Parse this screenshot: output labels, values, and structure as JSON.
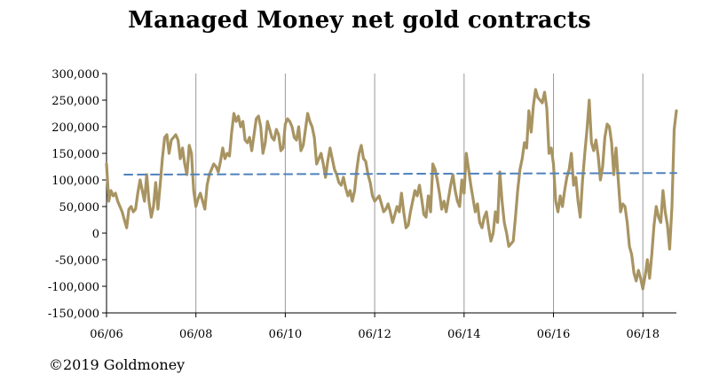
{
  "chart_data": {
    "type": "line",
    "title": "Managed Money net gold contracts",
    "xlabel": "",
    "ylabel": "",
    "x_ticks": [
      "06/06",
      "06/08",
      "06/10",
      "06/12",
      "06/14",
      "06/16",
      "06/18"
    ],
    "y_ticks": [
      "300,000",
      "250,000",
      "200,000",
      "150,000",
      "100,000",
      "50,000",
      "0",
      "-50,000",
      "-100,000",
      "-150,000"
    ],
    "ylim": [
      -150000,
      300000
    ],
    "xlim": [
      2006.42,
      2019.17
    ],
    "grid": "vertical",
    "legend": "none",
    "series": [
      {
        "line_color": "#a89462",
        "points": [
          [
            2006.42,
            130000
          ],
          [
            2006.47,
            60000
          ],
          [
            2006.52,
            80000
          ],
          [
            2006.57,
            70000
          ],
          [
            2006.62,
            75000
          ],
          [
            2006.67,
            60000
          ],
          [
            2006.72,
            50000
          ],
          [
            2006.77,
            40000
          ],
          [
            2006.82,
            25000
          ],
          [
            2006.87,
            10000
          ],
          [
            2006.92,
            45000
          ],
          [
            2006.97,
            50000
          ],
          [
            2007.02,
            40000
          ],
          [
            2007.07,
            45000
          ],
          [
            2007.12,
            75000
          ],
          [
            2007.17,
            100000
          ],
          [
            2007.22,
            80000
          ],
          [
            2007.27,
            60000
          ],
          [
            2007.32,
            110000
          ],
          [
            2007.37,
            60000
          ],
          [
            2007.42,
            30000
          ],
          [
            2007.47,
            50000
          ],
          [
            2007.52,
            95000
          ],
          [
            2007.57,
            45000
          ],
          [
            2007.62,
            90000
          ],
          [
            2007.67,
            140000
          ],
          [
            2007.72,
            180000
          ],
          [
            2007.77,
            185000
          ],
          [
            2007.82,
            150000
          ],
          [
            2007.87,
            175000
          ],
          [
            2007.92,
            180000
          ],
          [
            2007.97,
            185000
          ],
          [
            2008.02,
            175000
          ],
          [
            2008.07,
            140000
          ],
          [
            2008.12,
            160000
          ],
          [
            2008.17,
            130000
          ],
          [
            2008.22,
            110000
          ],
          [
            2008.27,
            165000
          ],
          [
            2008.32,
            150000
          ],
          [
            2008.37,
            80000
          ],
          [
            2008.42,
            50000
          ],
          [
            2008.47,
            65000
          ],
          [
            2008.52,
            75000
          ],
          [
            2008.57,
            60000
          ],
          [
            2008.62,
            45000
          ],
          [
            2008.67,
            90000
          ],
          [
            2008.72,
            110000
          ],
          [
            2008.77,
            120000
          ],
          [
            2008.82,
            130000
          ],
          [
            2008.87,
            125000
          ],
          [
            2008.92,
            115000
          ],
          [
            2008.97,
            135000
          ],
          [
            2009.02,
            160000
          ],
          [
            2009.07,
            140000
          ],
          [
            2009.12,
            150000
          ],
          [
            2009.17,
            145000
          ],
          [
            2009.22,
            190000
          ],
          [
            2009.27,
            225000
          ],
          [
            2009.32,
            210000
          ],
          [
            2009.37,
            220000
          ],
          [
            2009.42,
            200000
          ],
          [
            2009.47,
            210000
          ],
          [
            2009.52,
            175000
          ],
          [
            2009.57,
            170000
          ],
          [
            2009.62,
            180000
          ],
          [
            2009.67,
            155000
          ],
          [
            2009.72,
            185000
          ],
          [
            2009.77,
            215000
          ],
          [
            2009.82,
            220000
          ],
          [
            2009.87,
            200000
          ],
          [
            2009.92,
            150000
          ],
          [
            2009.97,
            170000
          ],
          [
            2010.02,
            210000
          ],
          [
            2010.07,
            195000
          ],
          [
            2010.12,
            180000
          ],
          [
            2010.17,
            175000
          ],
          [
            2010.22,
            195000
          ],
          [
            2010.27,
            185000
          ],
          [
            2010.32,
            155000
          ],
          [
            2010.37,
            160000
          ],
          [
            2010.42,
            205000
          ],
          [
            2010.47,
            215000
          ],
          [
            2010.52,
            210000
          ],
          [
            2010.57,
            200000
          ],
          [
            2010.62,
            180000
          ],
          [
            2010.67,
            175000
          ],
          [
            2010.72,
            200000
          ],
          [
            2010.77,
            155000
          ],
          [
            2010.82,
            165000
          ],
          [
            2010.87,
            195000
          ],
          [
            2010.92,
            225000
          ],
          [
            2010.97,
            210000
          ],
          [
            2011.02,
            200000
          ],
          [
            2011.07,
            180000
          ],
          [
            2011.12,
            130000
          ],
          [
            2011.17,
            140000
          ],
          [
            2011.22,
            150000
          ],
          [
            2011.27,
            130000
          ],
          [
            2011.32,
            105000
          ],
          [
            2011.37,
            135000
          ],
          [
            2011.42,
            160000
          ],
          [
            2011.47,
            140000
          ],
          [
            2011.52,
            120000
          ],
          [
            2011.57,
            110000
          ],
          [
            2011.62,
            95000
          ],
          [
            2011.67,
            90000
          ],
          [
            2011.72,
            105000
          ],
          [
            2011.77,
            85000
          ],
          [
            2011.82,
            70000
          ],
          [
            2011.87,
            80000
          ],
          [
            2011.92,
            60000
          ],
          [
            2011.97,
            80000
          ],
          [
            2012.02,
            120000
          ],
          [
            2012.07,
            150000
          ],
          [
            2012.12,
            165000
          ],
          [
            2012.17,
            140000
          ],
          [
            2012.22,
            135000
          ],
          [
            2012.27,
            110000
          ],
          [
            2012.32,
            95000
          ],
          [
            2012.37,
            70000
          ],
          [
            2012.42,
            60000
          ],
          [
            2012.47,
            65000
          ],
          [
            2012.52,
            70000
          ],
          [
            2012.57,
            55000
          ],
          [
            2012.62,
            40000
          ],
          [
            2012.67,
            45000
          ],
          [
            2012.72,
            55000
          ],
          [
            2012.77,
            40000
          ],
          [
            2012.82,
            20000
          ],
          [
            2012.87,
            35000
          ],
          [
            2012.92,
            50000
          ],
          [
            2012.97,
            40000
          ],
          [
            2013.02,
            75000
          ],
          [
            2013.07,
            40000
          ],
          [
            2013.12,
            10000
          ],
          [
            2013.17,
            15000
          ],
          [
            2013.22,
            40000
          ],
          [
            2013.27,
            60000
          ],
          [
            2013.32,
            80000
          ],
          [
            2013.37,
            70000
          ],
          [
            2013.42,
            90000
          ],
          [
            2013.47,
            65000
          ],
          [
            2013.52,
            35000
          ],
          [
            2013.57,
            30000
          ],
          [
            2013.62,
            70000
          ],
          [
            2013.67,
            40000
          ],
          [
            2013.72,
            130000
          ],
          [
            2013.77,
            120000
          ],
          [
            2013.82,
            100000
          ],
          [
            2013.87,
            75000
          ],
          [
            2013.92,
            45000
          ],
          [
            2013.97,
            60000
          ],
          [
            2014.02,
            40000
          ],
          [
            2014.07,
            65000
          ],
          [
            2014.12,
            90000
          ],
          [
            2014.17,
            110000
          ],
          [
            2014.22,
            80000
          ],
          [
            2014.27,
            60000
          ],
          [
            2014.32,
            50000
          ],
          [
            2014.37,
            100000
          ],
          [
            2014.42,
            75000
          ],
          [
            2014.47,
            150000
          ],
          [
            2014.52,
            120000
          ],
          [
            2014.57,
            90000
          ],
          [
            2014.62,
            65000
          ],
          [
            2014.67,
            40000
          ],
          [
            2014.72,
            55000
          ],
          [
            2014.77,
            20000
          ],
          [
            2014.82,
            10000
          ],
          [
            2014.87,
            30000
          ],
          [
            2014.92,
            40000
          ],
          [
            2014.97,
            10000
          ],
          [
            2015.02,
            -15000
          ],
          [
            2015.07,
            0
          ],
          [
            2015.12,
            40000
          ],
          [
            2015.17,
            20000
          ],
          [
            2015.22,
            115000
          ],
          [
            2015.27,
            60000
          ],
          [
            2015.32,
            20000
          ],
          [
            2015.37,
            0
          ],
          [
            2015.42,
            -25000
          ],
          [
            2015.47,
            -20000
          ],
          [
            2015.52,
            -15000
          ],
          [
            2015.57,
            30000
          ],
          [
            2015.62,
            80000
          ],
          [
            2015.67,
            120000
          ],
          [
            2015.72,
            140000
          ],
          [
            2015.77,
            170000
          ],
          [
            2015.82,
            160000
          ],
          [
            2015.87,
            230000
          ],
          [
            2015.92,
            190000
          ],
          [
            2015.97,
            240000
          ],
          [
            2016.02,
            270000
          ],
          [
            2016.07,
            255000
          ],
          [
            2016.12,
            250000
          ],
          [
            2016.17,
            245000
          ],
          [
            2016.22,
            265000
          ],
          [
            2016.27,
            235000
          ],
          [
            2016.32,
            150000
          ],
          [
            2016.37,
            160000
          ],
          [
            2016.42,
            130000
          ],
          [
            2016.47,
            60000
          ],
          [
            2016.52,
            40000
          ],
          [
            2016.57,
            70000
          ],
          [
            2016.62,
            50000
          ],
          [
            2016.67,
            80000
          ],
          [
            2016.72,
            105000
          ],
          [
            2016.77,
            120000
          ],
          [
            2016.82,
            150000
          ],
          [
            2016.87,
            90000
          ],
          [
            2016.92,
            105000
          ],
          [
            2016.97,
            60000
          ],
          [
            2017.02,
            30000
          ],
          [
            2017.07,
            100000
          ],
          [
            2017.12,
            150000
          ],
          [
            2017.17,
            195000
          ],
          [
            2017.22,
            250000
          ],
          [
            2017.27,
            170000
          ],
          [
            2017.32,
            155000
          ],
          [
            2017.37,
            175000
          ],
          [
            2017.42,
            145000
          ],
          [
            2017.47,
            100000
          ],
          [
            2017.52,
            125000
          ],
          [
            2017.57,
            180000
          ],
          [
            2017.62,
            205000
          ],
          [
            2017.67,
            200000
          ],
          [
            2017.72,
            170000
          ],
          [
            2017.77,
            110000
          ],
          [
            2017.82,
            160000
          ],
          [
            2017.87,
            100000
          ],
          [
            2017.92,
            40000
          ],
          [
            2017.97,
            55000
          ],
          [
            2018.02,
            50000
          ],
          [
            2018.07,
            20000
          ],
          [
            2018.12,
            -25000
          ],
          [
            2018.17,
            -40000
          ],
          [
            2018.22,
            -75000
          ],
          [
            2018.27,
            -90000
          ],
          [
            2018.32,
            -70000
          ],
          [
            2018.37,
            -85000
          ],
          [
            2018.42,
            -105000
          ],
          [
            2018.47,
            -80000
          ],
          [
            2018.52,
            -50000
          ],
          [
            2018.57,
            -85000
          ],
          [
            2018.62,
            -40000
          ],
          [
            2018.67,
            15000
          ],
          [
            2018.72,
            50000
          ],
          [
            2018.77,
            30000
          ],
          [
            2018.82,
            20000
          ],
          [
            2018.87,
            80000
          ],
          [
            2018.92,
            40000
          ],
          [
            2018.97,
            15000
          ],
          [
            2019.02,
            -30000
          ],
          [
            2019.07,
            50000
          ],
          [
            2019.12,
            195000
          ],
          [
            2019.17,
            230000
          ]
        ]
      },
      {
        "line_color": "#4f81bd",
        "line_style": "dashed",
        "points": [
          [
            2006.82,
            110000
          ],
          [
            2019.17,
            113000
          ]
        ]
      }
    ]
  },
  "copyright": "©2019 Goldmoney"
}
